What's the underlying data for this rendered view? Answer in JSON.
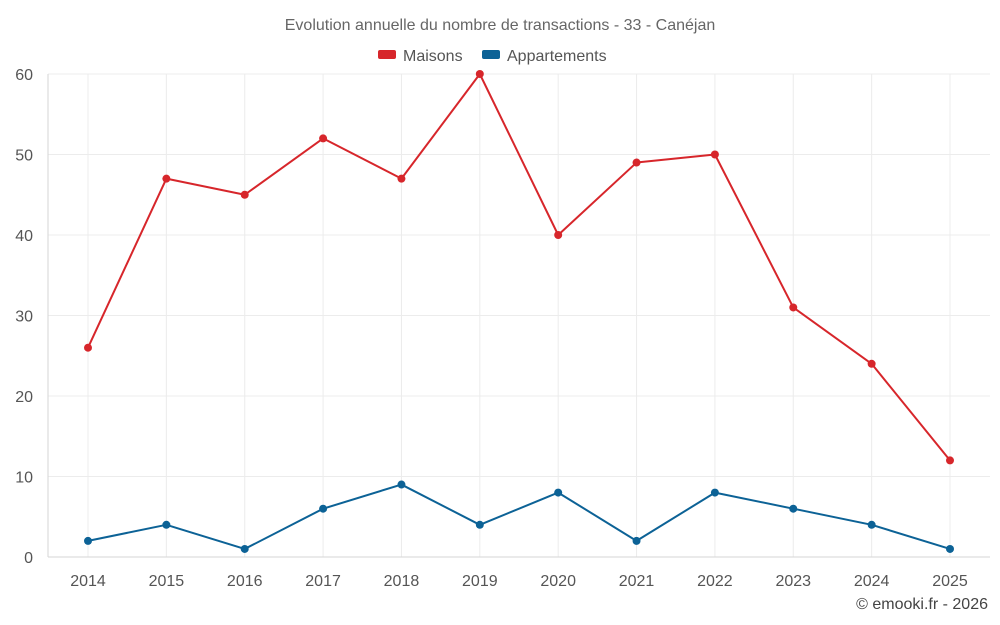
{
  "chart_data": {
    "type": "line",
    "title": "Evolution annuelle du nombre de transactions - 33 - Canéjan",
    "categories": [
      "2014",
      "2015",
      "2016",
      "2017",
      "2018",
      "2019",
      "2020",
      "2021",
      "2022",
      "2023",
      "2024",
      "2025"
    ],
    "series": [
      {
        "name": "Maisons",
        "color": "#d7262b",
        "values": [
          26,
          47,
          45,
          52,
          47,
          60,
          40,
          49,
          50,
          31,
          24,
          12
        ]
      },
      {
        "name": "Appartements",
        "color": "#0c6296",
        "values": [
          2,
          4,
          1,
          6,
          9,
          4,
          8,
          2,
          8,
          6,
          4,
          1
        ]
      }
    ],
    "ylim": [
      0,
      60
    ],
    "yticks": [
      0,
      10,
      20,
      30,
      40,
      50,
      60
    ],
    "legend": "top-center",
    "grid": true,
    "xlabel": "",
    "ylabel": ""
  },
  "credit": "© emooki.fr - 2026"
}
